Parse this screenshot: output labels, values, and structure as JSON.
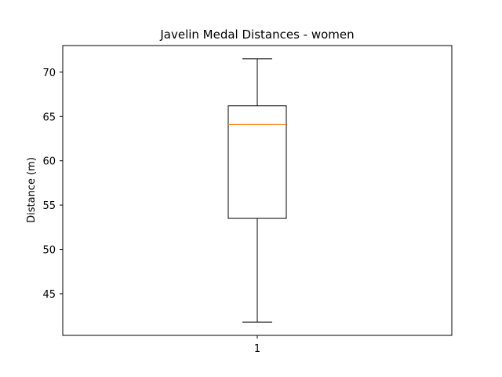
{
  "chart_data": {
    "type": "box",
    "title": "Javelin Medal Distances - women",
    "xlabel": "",
    "ylabel": "Distance (m)",
    "categories": [
      "1"
    ],
    "boxes": [
      {
        "label": "1",
        "whisker_low": 41.8,
        "q1": 53.5,
        "median": 64.1,
        "q3": 66.2,
        "whisker_high": 71.5
      }
    ],
    "ylim": [
      40.3,
      73.0
    ],
    "yticks": [
      45,
      50,
      55,
      60,
      65,
      70
    ],
    "grid": false,
    "colors": {
      "box": "#000000",
      "median": "#ff7f0e",
      "whisker": "#000000"
    }
  }
}
